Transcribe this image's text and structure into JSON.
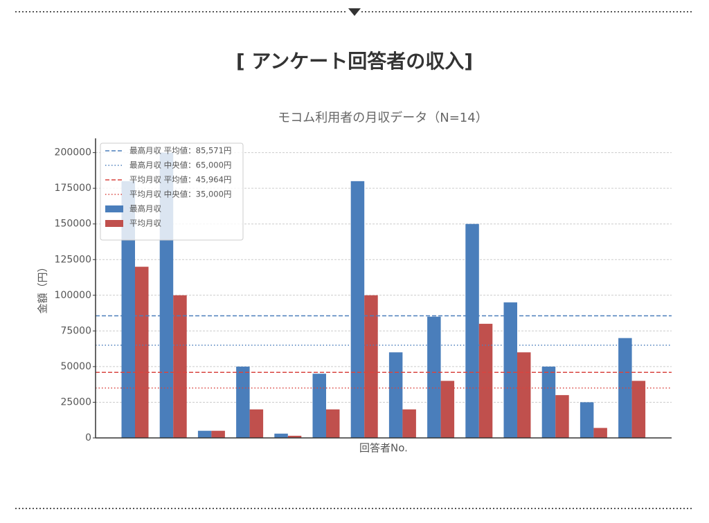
{
  "header": {
    "title": "[ アンケート回答者の収入]"
  },
  "chart_data": {
    "type": "bar",
    "title": "モコム利用者の月収データ（N=14）",
    "x_label": "回答者No.",
    "y_label": "金額（円）",
    "categories": [
      null,
      null,
      null,
      null,
      null,
      null,
      null,
      null,
      null,
      null,
      null,
      null,
      null,
      null
    ],
    "series": [
      {
        "name": "最高月収",
        "color": "#4a7ebb",
        "values": [
          180000,
          200000,
          5000,
          50000,
          3000,
          45000,
          180000,
          60000,
          85000,
          150000,
          95000,
          50000,
          25000,
          70000
        ]
      },
      {
        "name": "平均月収",
        "color": "#c0504d",
        "values": [
          120000,
          100000,
          5000,
          20000,
          1500,
          20000,
          100000,
          20000,
          40000,
          80000,
          60000,
          30000,
          7000,
          40000
        ]
      }
    ],
    "reference_lines": [
      {
        "label": "最高月収 平均値：85,571円",
        "value": 85571,
        "color": "#4a7ebb",
        "style": "dashed"
      },
      {
        "label": "最高月収 中央値：65,000円",
        "value": 65000,
        "color": "#4a7ebb",
        "style": "dotted"
      },
      {
        "label": "平均月収 平均値：45,964円",
        "value": 45964,
        "color": "#d9443f",
        "style": "dashed"
      },
      {
        "label": "平均月収 中央値：35,000円",
        "value": 35000,
        "color": "#d9443f",
        "style": "dotted"
      }
    ],
    "ylim": [
      0,
      210000
    ],
    "yticks": [
      0,
      25000,
      50000,
      75000,
      100000,
      125000,
      150000,
      175000,
      200000
    ],
    "grid": true,
    "legend": "upper left"
  }
}
